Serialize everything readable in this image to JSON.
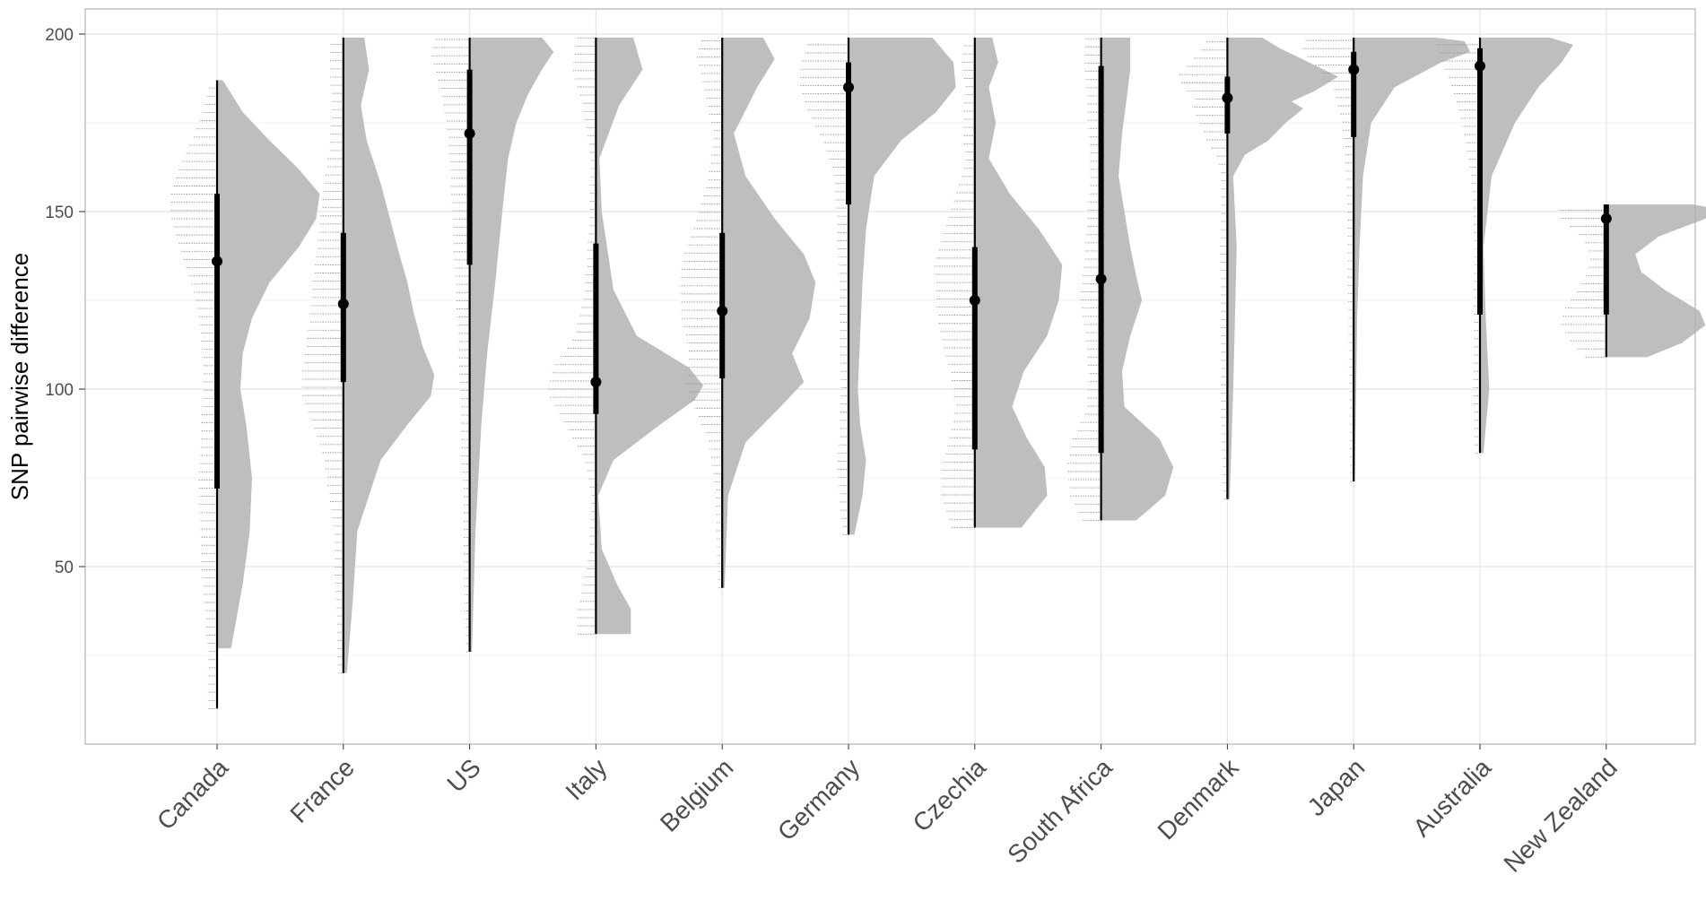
{
  "chart_data": {
    "type": "raincloud",
    "title": "",
    "xlabel": "",
    "ylabel": "SNP pairwise difference",
    "ylim": [
      0,
      200
    ],
    "yticks": [
      50,
      100,
      150,
      200
    ],
    "categories": [
      "Canada",
      "France",
      "US",
      "Italy",
      "Belgium",
      "Germany",
      "Czechia",
      "South Africa",
      "Denmark",
      "Japan",
      "Australia",
      "New Zealand"
    ],
    "grid": true,
    "colors": {
      "density": "#bebebe",
      "summary": "#000000",
      "grid": "#e4e4e4",
      "panel_border": "#b3b3b3",
      "axis_text": "#4d4d4d"
    },
    "series": [
      {
        "category": "Canada",
        "min": 10,
        "max": 187,
        "q1": 72,
        "median": 136,
        "q3": 155,
        "point": 136,
        "density": [
          [
            27,
            0.12
          ],
          [
            45,
            0.22
          ],
          [
            60,
            0.28
          ],
          [
            75,
            0.3
          ],
          [
            90,
            0.25
          ],
          [
            100,
            0.2
          ],
          [
            110,
            0.22
          ],
          [
            120,
            0.3
          ],
          [
            130,
            0.45
          ],
          [
            140,
            0.7
          ],
          [
            148,
            0.85
          ],
          [
            155,
            0.88
          ],
          [
            162,
            0.7
          ],
          [
            170,
            0.45
          ],
          [
            178,
            0.22
          ],
          [
            187,
            0.05
          ]
        ]
      },
      {
        "category": "France",
        "min": 20,
        "max": 199,
        "q1": 102,
        "median": 124,
        "q3": 144,
        "point": 124,
        "density": [
          [
            20,
            0.03
          ],
          [
            40,
            0.08
          ],
          [
            60,
            0.12
          ],
          [
            80,
            0.32
          ],
          [
            90,
            0.55
          ],
          [
            98,
            0.75
          ],
          [
            104,
            0.78
          ],
          [
            112,
            0.68
          ],
          [
            122,
            0.6
          ],
          [
            130,
            0.55
          ],
          [
            138,
            0.48
          ],
          [
            148,
            0.4
          ],
          [
            158,
            0.32
          ],
          [
            170,
            0.2
          ],
          [
            180,
            0.15
          ],
          [
            190,
            0.22
          ],
          [
            199,
            0.18
          ]
        ]
      },
      {
        "category": "US",
        "min": 26,
        "max": 199,
        "q1": 135,
        "median": 172,
        "q3": 190,
        "point": 172,
        "density": [
          [
            26,
            0.02
          ],
          [
            60,
            0.05
          ],
          [
            90,
            0.1
          ],
          [
            110,
            0.15
          ],
          [
            130,
            0.22
          ],
          [
            150,
            0.28
          ],
          [
            165,
            0.33
          ],
          [
            175,
            0.4
          ],
          [
            183,
            0.5
          ],
          [
            190,
            0.62
          ],
          [
            195,
            0.72
          ],
          [
            199,
            0.62
          ]
        ]
      },
      {
        "category": "Italy",
        "min": 31,
        "max": 199,
        "q1": 93,
        "median": 102,
        "q3": 141,
        "point": 102,
        "density": [
          [
            31,
            0.3
          ],
          [
            38,
            0.3
          ],
          [
            45,
            0.18
          ],
          [
            55,
            0.05
          ],
          [
            70,
            0.02
          ],
          [
            80,
            0.15
          ],
          [
            90,
            0.55
          ],
          [
            97,
            0.85
          ],
          [
            101,
            0.92
          ],
          [
            106,
            0.8
          ],
          [
            115,
            0.35
          ],
          [
            128,
            0.15
          ],
          [
            150,
            0.05
          ],
          [
            165,
            0.03
          ],
          [
            180,
            0.2
          ],
          [
            190,
            0.4
          ],
          [
            199,
            0.32
          ]
        ]
      },
      {
        "category": "Belgium",
        "min": 44,
        "max": 199,
        "q1": 103,
        "median": 122,
        "q3": 144,
        "point": 122,
        "density": [
          [
            44,
            0.02
          ],
          [
            70,
            0.05
          ],
          [
            85,
            0.2
          ],
          [
            95,
            0.5
          ],
          [
            102,
            0.7
          ],
          [
            110,
            0.6
          ],
          [
            120,
            0.75
          ],
          [
            130,
            0.8
          ],
          [
            138,
            0.7
          ],
          [
            148,
            0.45
          ],
          [
            160,
            0.2
          ],
          [
            172,
            0.1
          ],
          [
            185,
            0.3
          ],
          [
            193,
            0.45
          ],
          [
            199,
            0.35
          ]
        ]
      },
      {
        "category": "Germany",
        "min": 59,
        "max": 199,
        "q1": 152,
        "median": 185,
        "q3": 192,
        "point": 185,
        "density": [
          [
            59,
            0.05
          ],
          [
            70,
            0.12
          ],
          [
            80,
            0.15
          ],
          [
            90,
            0.1
          ],
          [
            100,
            0.08
          ],
          [
            115,
            0.1
          ],
          [
            130,
            0.12
          ],
          [
            145,
            0.15
          ],
          [
            160,
            0.22
          ],
          [
            170,
            0.45
          ],
          [
            178,
            0.75
          ],
          [
            185,
            0.92
          ],
          [
            192,
            0.9
          ],
          [
            199,
            0.72
          ]
        ]
      },
      {
        "category": "Czechia",
        "min": 61,
        "max": 199,
        "q1": 83,
        "median": 125,
        "q3": 140,
        "point": 125,
        "density": [
          [
            61,
            0.4
          ],
          [
            70,
            0.62
          ],
          [
            78,
            0.6
          ],
          [
            86,
            0.45
          ],
          [
            95,
            0.32
          ],
          [
            105,
            0.42
          ],
          [
            115,
            0.62
          ],
          [
            125,
            0.72
          ],
          [
            135,
            0.75
          ],
          [
            145,
            0.55
          ],
          [
            155,
            0.3
          ],
          [
            165,
            0.12
          ],
          [
            175,
            0.18
          ],
          [
            185,
            0.12
          ],
          [
            192,
            0.2
          ],
          [
            199,
            0.15
          ]
        ]
      },
      {
        "category": "South Africa",
        "min": 63,
        "max": 199,
        "q1": 82,
        "median": 131,
        "q3": 191,
        "point": 131,
        "density": [
          [
            63,
            0.3
          ],
          [
            70,
            0.55
          ],
          [
            78,
            0.62
          ],
          [
            86,
            0.5
          ],
          [
            95,
            0.2
          ],
          [
            105,
            0.18
          ],
          [
            115,
            0.25
          ],
          [
            125,
            0.35
          ],
          [
            132,
            0.3
          ],
          [
            140,
            0.25
          ],
          [
            150,
            0.2
          ],
          [
            160,
            0.15
          ],
          [
            172,
            0.18
          ],
          [
            182,
            0.22
          ],
          [
            190,
            0.25
          ],
          [
            199,
            0.25
          ]
        ]
      },
      {
        "category": "Denmark",
        "min": 69,
        "max": 199,
        "q1": 172,
        "median": 182,
        "q3": 188,
        "point": 182,
        "density": [
          [
            69,
            0.02
          ],
          [
            100,
            0.05
          ],
          [
            140,
            0.08
          ],
          [
            160,
            0.05
          ],
          [
            166,
            0.15
          ],
          [
            170,
            0.35
          ],
          [
            175,
            0.5
          ],
          [
            179,
            0.65
          ],
          [
            181,
            0.55
          ],
          [
            184,
            0.75
          ],
          [
            188,
            0.95
          ],
          [
            192,
            0.7
          ],
          [
            196,
            0.45
          ],
          [
            199,
            0.3
          ]
        ]
      },
      {
        "category": "Japan",
        "min": 74,
        "max": 199,
        "q1": 171,
        "median": 190,
        "q3": 195,
        "point": 190,
        "density": [
          [
            74,
            0.01
          ],
          [
            120,
            0.03
          ],
          [
            140,
            0.05
          ],
          [
            160,
            0.08
          ],
          [
            175,
            0.15
          ],
          [
            185,
            0.35
          ],
          [
            192,
            0.75
          ],
          [
            195,
            1.0
          ],
          [
            198,
            0.95
          ],
          [
            199,
            0.7
          ]
        ]
      },
      {
        "category": "Australia",
        "min": 82,
        "max": 199,
        "q1": 121,
        "median": 191,
        "q3": 196,
        "point": 191,
        "density": [
          [
            82,
            0.03
          ],
          [
            100,
            0.08
          ],
          [
            120,
            0.05
          ],
          [
            140,
            0.03
          ],
          [
            160,
            0.1
          ],
          [
            175,
            0.3
          ],
          [
            185,
            0.5
          ],
          [
            192,
            0.7
          ],
          [
            197,
            0.8
          ],
          [
            199,
            0.6
          ]
        ]
      },
      {
        "category": "New Zealand",
        "min": 109,
        "max": 152,
        "q1": 121,
        "median": 148,
        "q3": 152,
        "point": 148,
        "density": [
          [
            109,
            0.35
          ],
          [
            113,
            0.65
          ],
          [
            118,
            0.85
          ],
          [
            122,
            0.8
          ],
          [
            128,
            0.5
          ],
          [
            133,
            0.3
          ],
          [
            138,
            0.25
          ],
          [
            143,
            0.45
          ],
          [
            148,
            0.85
          ],
          [
            151,
            0.9
          ],
          [
            152,
            0.75
          ]
        ]
      }
    ]
  }
}
